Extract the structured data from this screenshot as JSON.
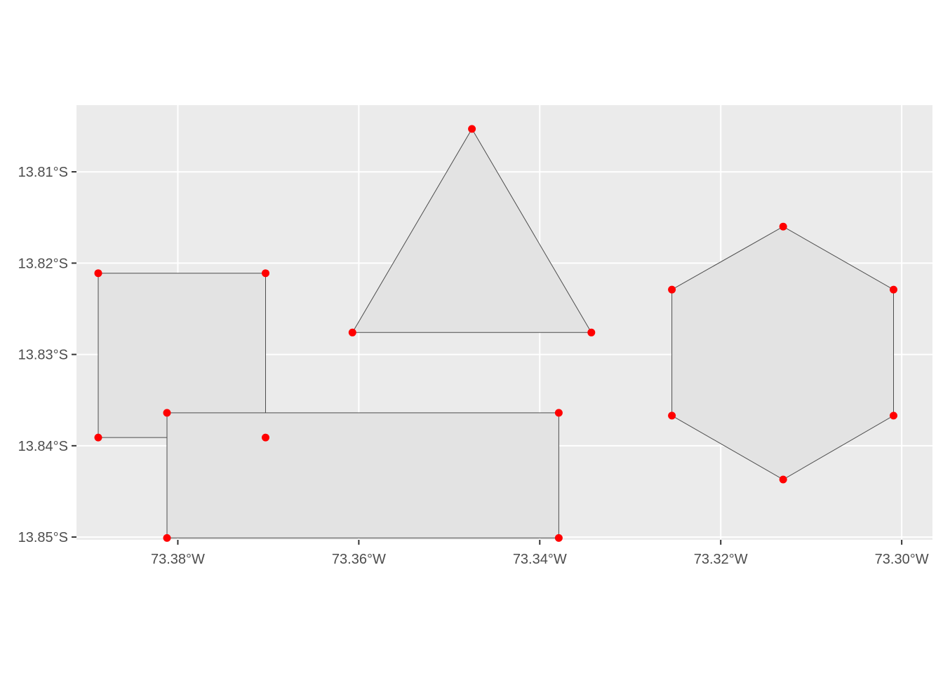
{
  "chart_data": {
    "type": "map",
    "x_ticks": [
      {
        "value": -73.38,
        "label": "73.38°W"
      },
      {
        "value": -73.36,
        "label": "73.36°W"
      },
      {
        "value": -73.34,
        "label": "73.34°W"
      },
      {
        "value": -73.32,
        "label": "73.32°W"
      },
      {
        "value": -73.3,
        "label": "73.30°W"
      }
    ],
    "y_ticks": [
      {
        "value": -13.81,
        "label": "13.81°S"
      },
      {
        "value": -13.82,
        "label": "13.82°S"
      },
      {
        "value": -13.83,
        "label": "13.83°S"
      },
      {
        "value": -13.84,
        "label": "13.84°S"
      },
      {
        "value": -13.85,
        "label": "13.85°S"
      }
    ],
    "xlim": [
      -73.3912,
      -73.2966
    ],
    "ylim": [
      -13.8503,
      -13.8027
    ],
    "grid": true,
    "panel_color": "#ebebeb",
    "polygon_fill": "#e3e3e3",
    "polygon_stroke": "#4d4d4d",
    "point_color": "#ff0000",
    "polygons": [
      {
        "name": "square",
        "coords": [
          [
            -73.3888,
            -13.8211
          ],
          [
            -73.3703,
            -13.8211
          ],
          [
            -73.3703,
            -13.8391
          ],
          [
            -73.3888,
            -13.8391
          ]
        ]
      },
      {
        "name": "rectangle",
        "coords": [
          [
            -73.3812,
            -13.8364
          ],
          [
            -73.3379,
            -13.8364
          ],
          [
            -73.3379,
            -13.8501
          ],
          [
            -73.3812,
            -13.8501
          ]
        ]
      },
      {
        "name": "triangle",
        "coords": [
          [
            -73.3475,
            -13.8053
          ],
          [
            -73.3343,
            -13.8276
          ],
          [
            -73.3607,
            -13.8276
          ]
        ]
      },
      {
        "name": "hexagon",
        "coords": [
          [
            -73.3131,
            -13.816
          ],
          [
            -73.3009,
            -13.8229
          ],
          [
            -73.3009,
            -13.8367
          ],
          [
            -73.3131,
            -13.8437
          ],
          [
            -73.3254,
            -13.8367
          ],
          [
            -73.3254,
            -13.8229
          ]
        ]
      }
    ],
    "points": [
      [
        -73.3888,
        -13.8211
      ],
      [
        -73.3703,
        -13.8211
      ],
      [
        -73.3888,
        -13.8391
      ],
      [
        -73.3703,
        -13.8391
      ],
      [
        -73.3812,
        -13.8364
      ],
      [
        -73.3379,
        -13.8364
      ],
      [
        -73.3812,
        -13.8501
      ],
      [
        -73.3379,
        -13.8501
      ],
      [
        -73.3475,
        -13.8053
      ],
      [
        -73.3607,
        -13.8276
      ],
      [
        -73.3343,
        -13.8276
      ],
      [
        -73.3131,
        -13.816
      ],
      [
        -73.3254,
        -13.8229
      ],
      [
        -73.3009,
        -13.8229
      ],
      [
        -73.3254,
        -13.8367
      ],
      [
        -73.3009,
        -13.8367
      ],
      [
        -73.3131,
        -13.8437
      ]
    ]
  }
}
